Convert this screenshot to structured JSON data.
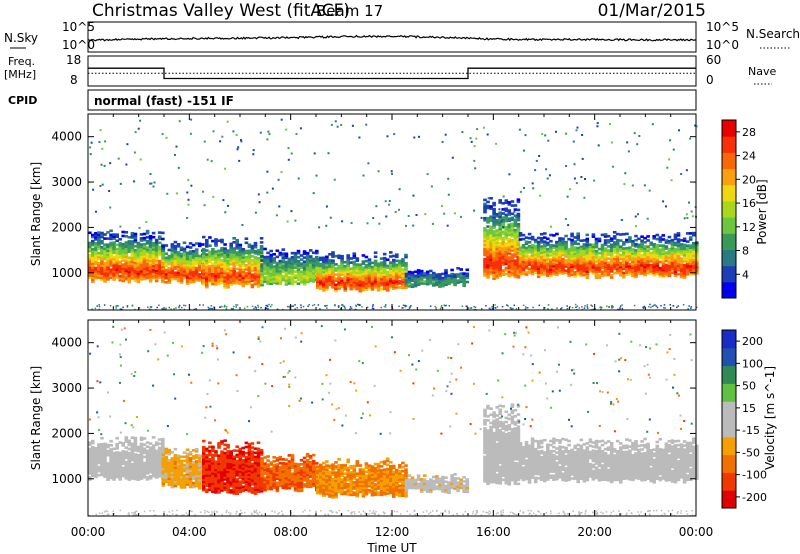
{
  "header": {
    "station": "Christmas Valley West (fitACF)",
    "beam": "Beam 17",
    "date": "01/Mar/2015"
  },
  "labels": {
    "nsky": "N.Sky",
    "nsearch": "N.Search",
    "freq_line1": "Freq.",
    "freq_line2": "[MHz]",
    "nave": "Nave",
    "cpid": "CPID",
    "cpid_value": "normal (fast) -151 IF"
  },
  "colors": {
    "power_scale": [
      "#0000ee",
      "#1c3fb8",
      "#2a7a84",
      "#3a9a5a",
      "#6cc640",
      "#a8d81e",
      "#f0d810",
      "#f8a010",
      "#f86808",
      "#f83008",
      "#e80000"
    ],
    "velocity_scale": [
      "#1a2cc8",
      "#2050b0",
      "#2f8a55",
      "#60c040",
      "#bbbbbb",
      "#bbbbbb",
      "#f5a000",
      "#f07000",
      "#f03800",
      "#e00000"
    ]
  },
  "chart_data": [
    {
      "type": "line",
      "panel": "noise",
      "left_axis": {
        "label": "N.Sky",
        "ticks": [
          "10^5",
          "10^0"
        ]
      },
      "right_axis": {
        "label": "N.Search",
        "ticks": [
          "10^5",
          "10^0"
        ]
      },
      "x": [
        "00:00",
        "02:00",
        "04:00",
        "06:00",
        "08:00",
        "10:00",
        "12:00",
        "14:00",
        "16:00",
        "18:00",
        "20:00",
        "22:00",
        "24:00"
      ],
      "series": [
        {
          "values": [
            1.6,
            1.9,
            2.1,
            2.2,
            2.3,
            2.6,
            2.7,
            2.4,
            1.9,
            1.8,
            1.8,
            1.7,
            1.7
          ]
        }
      ]
    },
    {
      "type": "line",
      "panel": "frequency",
      "left_axis": {
        "label": "Freq. [MHz]",
        "ticks": [
          18,
          8
        ],
        "ylim": [
          8,
          18
        ]
      },
      "right_axis": {
        "label": "Nave",
        "ticks": [
          60,
          0
        ],
        "ylim": [
          0,
          60
        ]
      },
      "series": [
        {
          "axis": "left",
          "points": [
            [
              "00:00",
              14.6
            ],
            [
              "03:00",
              14.6
            ],
            [
              "03:00",
              10.3
            ],
            [
              "15:00",
              10.3
            ],
            [
              "15:00",
              14.6
            ],
            [
              "24:00",
              14.6
            ]
          ]
        },
        {
          "axis": "right",
          "style": "dotted",
          "points": [
            [
              "00:00",
              27
            ],
            [
              "24:00",
              27
            ]
          ]
        }
      ]
    },
    {
      "type": "heatmap",
      "panel": "power",
      "ylabel": "Slant Range [km]",
      "yticks": [
        1000,
        2000,
        3000,
        4000
      ],
      "ylim": [
        180,
        4500
      ],
      "xlim": [
        "00:00",
        "24:00"
      ],
      "colorbar": {
        "label": "Power [dB]",
        "ticks": [
          4,
          8,
          12,
          16,
          20,
          24,
          28
        ],
        "range": [
          0,
          30
        ]
      },
      "bands": [
        {
          "t": [
            0.0,
            2.9
          ],
          "r": [
            820,
            1900
          ],
          "peak": 28
        },
        {
          "t": [
            2.9,
            4.5
          ],
          "r": [
            780,
            1650
          ],
          "peak": 28
        },
        {
          "t": [
            4.5,
            6.8
          ],
          "r": [
            700,
            1750
          ],
          "peak": 27
        },
        {
          "t": [
            6.8,
            9.0
          ],
          "r": [
            760,
            1500
          ],
          "peak": 16
        },
        {
          "t": [
            9.0,
            12.5
          ],
          "r": [
            620,
            1400
          ],
          "peak": 28
        },
        {
          "t": [
            12.5,
            14.9
          ],
          "r": [
            720,
            1050
          ],
          "peak": 10
        },
        {
          "t": [
            15.6,
            17.0
          ],
          "r": [
            900,
            2600
          ],
          "peak": 28
        },
        {
          "t": [
            17.0,
            24.0
          ],
          "r": [
            920,
            1850
          ],
          "peak": 28
        }
      ]
    },
    {
      "type": "heatmap",
      "panel": "velocity",
      "ylabel": "Slant Range [km]",
      "xlabel": "Time UT",
      "xticks": [
        "00:00",
        "04:00",
        "08:00",
        "12:00",
        "16:00",
        "20:00",
        "00:00"
      ],
      "yticks": [
        1000,
        2000,
        3000,
        4000
      ],
      "ylim": [
        180,
        4500
      ],
      "xlim": [
        "00:00",
        "24:00"
      ],
      "colorbar": {
        "label": "Velocity [m s^-1]",
        "ticks": [
          200,
          100,
          50,
          15,
          -15,
          -50,
          -100,
          -200
        ],
        "range": [
          -250,
          250
        ]
      },
      "bands": [
        {
          "t": [
            0.0,
            2.9
          ],
          "r": [
            1000,
            1900
          ],
          "v": 0
        },
        {
          "t": [
            2.9,
            4.5
          ],
          "r": [
            820,
            1650
          ],
          "v": -80
        },
        {
          "t": [
            4.5,
            6.8
          ],
          "r": [
            700,
            1800
          ],
          "v": -210
        },
        {
          "t": [
            6.8,
            9.0
          ],
          "r": [
            760,
            1500
          ],
          "v": -160
        },
        {
          "t": [
            9.0,
            12.5
          ],
          "r": [
            620,
            1400
          ],
          "v": -110
        },
        {
          "t": [
            12.5,
            14.9
          ],
          "r": [
            720,
            1050
          ],
          "v": -30
        },
        {
          "t": [
            15.6,
            17.0
          ],
          "r": [
            900,
            2600
          ],
          "v": 0
        },
        {
          "t": [
            17.0,
            24.0
          ],
          "r": [
            950,
            1850
          ],
          "v": 0
        }
      ]
    }
  ]
}
